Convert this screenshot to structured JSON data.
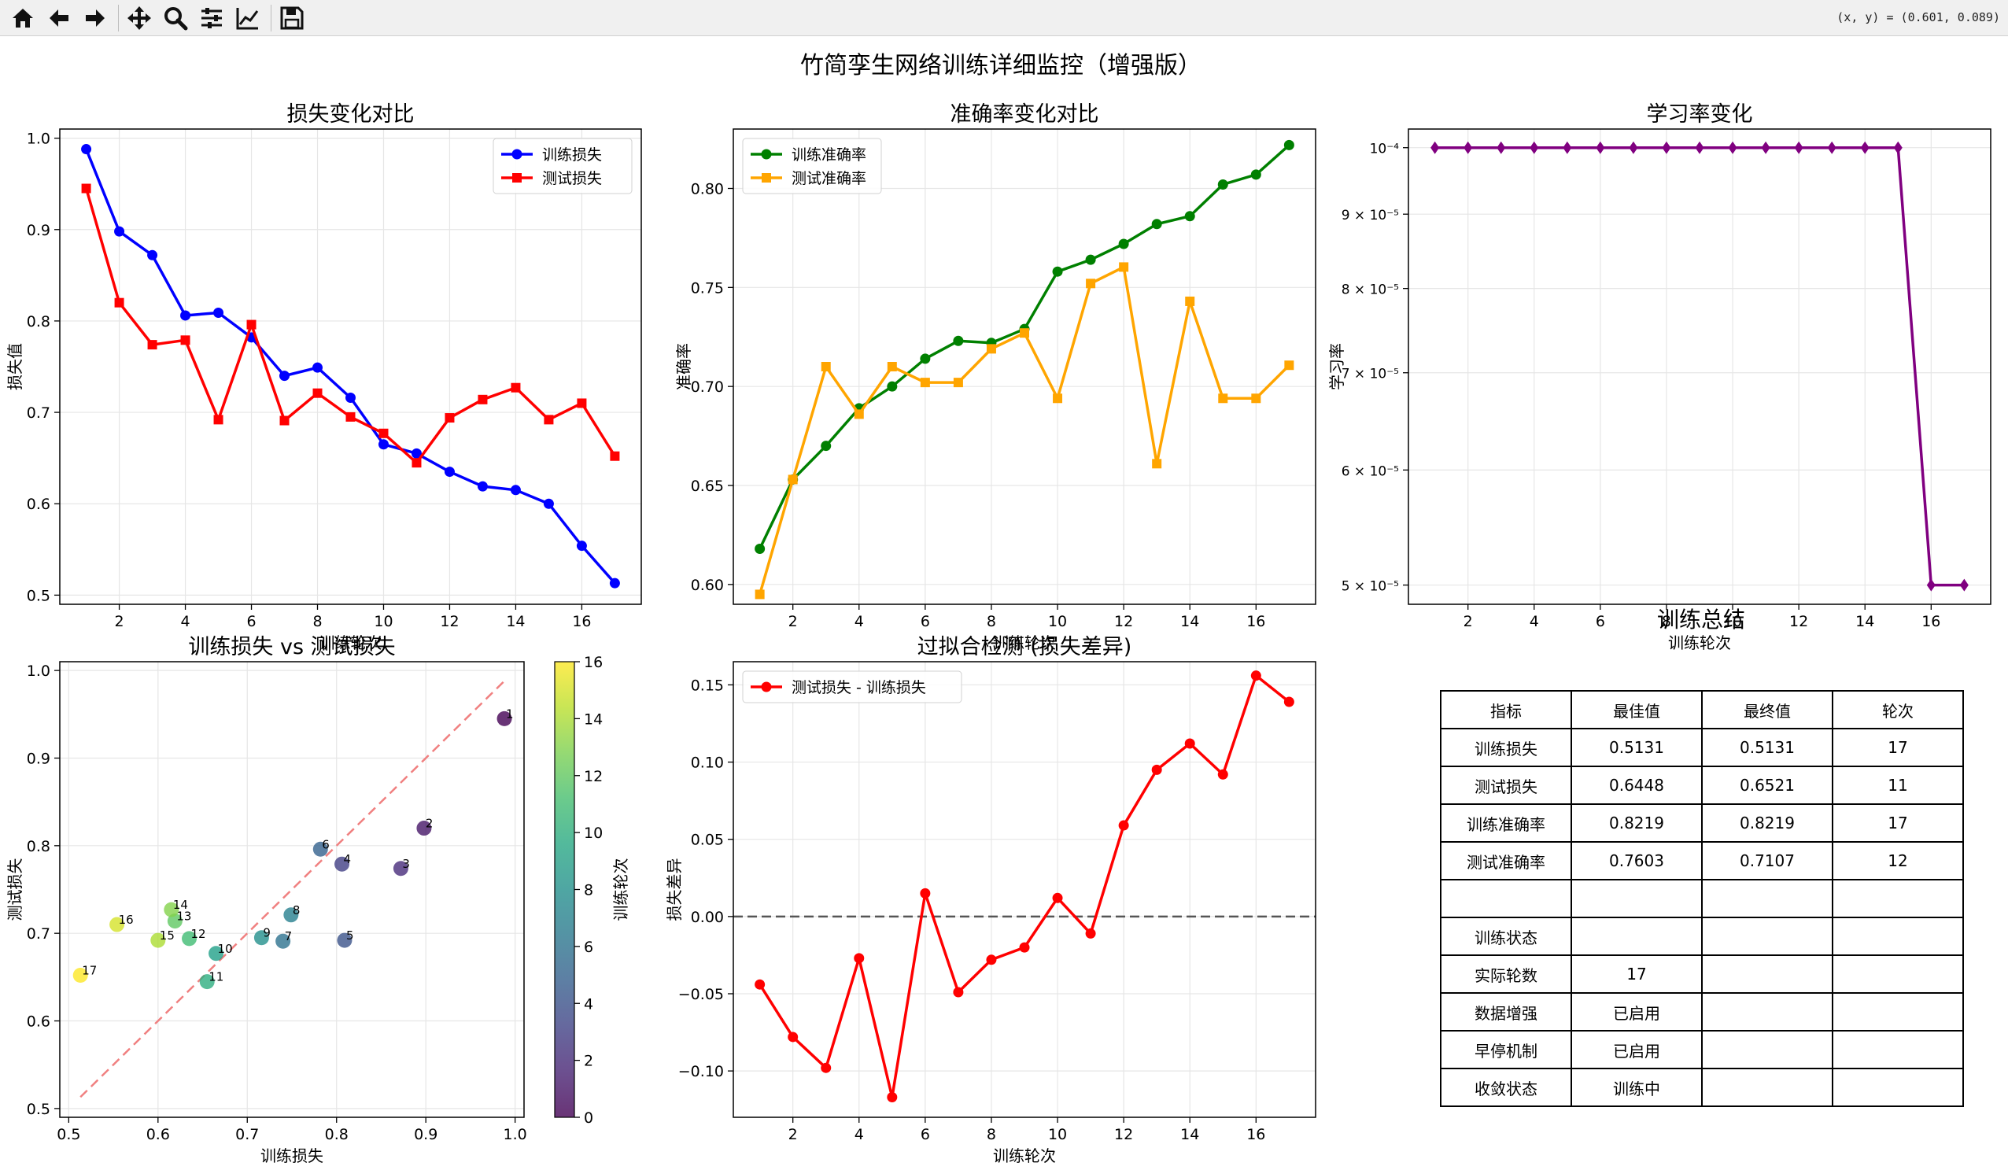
{
  "toolbar": {
    "buttons": [
      {
        "name": "home-button",
        "icon": "home-icon"
      },
      {
        "name": "back-button",
        "icon": "arrow-left-icon"
      },
      {
        "name": "forward-button",
        "icon": "arrow-right-icon"
      },
      {
        "name": "pan-button",
        "icon": "move-icon"
      },
      {
        "name": "zoom-button",
        "icon": "magnifier-icon"
      },
      {
        "name": "subplots-button",
        "icon": "sliders-icon"
      },
      {
        "name": "edit-axes-button",
        "icon": "line-chart-icon"
      },
      {
        "name": "save-button",
        "icon": "floppy-disk-icon"
      }
    ],
    "coordinate_readout": "(x, y) = (0.601, 0.089)"
  },
  "figure": {
    "suptitle": "竹简孪生网络训练详细监控（增强版）"
  },
  "chart_data": [
    {
      "id": "loss",
      "type": "line",
      "title": "损失变化对比",
      "xlabel": "训练轮次",
      "ylabel": "损失值",
      "xlim": [
        0.2,
        17.8
      ],
      "ylim": [
        0.49,
        1.01
      ],
      "xticks": [
        2,
        4,
        6,
        8,
        10,
        12,
        14,
        16
      ],
      "yticks": [
        0.5,
        0.6,
        0.7,
        0.8,
        0.9,
        1.0
      ],
      "ytick_labels": [
        "0.5",
        "0.6",
        "0.7",
        "0.8",
        "0.9",
        "1.0"
      ],
      "grid": true,
      "legend": "upper-right",
      "x": [
        1,
        2,
        3,
        4,
        5,
        6,
        7,
        8,
        9,
        10,
        11,
        12,
        13,
        14,
        15,
        16,
        17
      ],
      "series": [
        {
          "name": "训练损失",
          "color": "#0000ff",
          "marker": "circle",
          "values": [
            0.988,
            0.898,
            0.872,
            0.806,
            0.809,
            0.782,
            0.74,
            0.749,
            0.716,
            0.665,
            0.655,
            0.635,
            0.619,
            0.615,
            0.6,
            0.554,
            0.5131
          ]
        },
        {
          "name": "测试损失",
          "color": "#ff0000",
          "marker": "square",
          "values": [
            0.945,
            0.82,
            0.774,
            0.779,
            0.692,
            0.796,
            0.691,
            0.721,
            0.695,
            0.677,
            0.6448,
            0.694,
            0.714,
            0.727,
            0.692,
            0.71,
            0.6521
          ]
        }
      ]
    },
    {
      "id": "accuracy",
      "type": "line",
      "title": "准确率变化对比",
      "xlabel": "训练轮次",
      "ylabel": "准确率",
      "xlim": [
        0.2,
        17.8
      ],
      "ylim": [
        0.59,
        0.83
      ],
      "xticks": [
        2,
        4,
        6,
        8,
        10,
        12,
        14,
        16
      ],
      "yticks": [
        0.6,
        0.65,
        0.7,
        0.75,
        0.8
      ],
      "ytick_labels": [
        "0.60",
        "0.65",
        "0.70",
        "0.75",
        "0.80"
      ],
      "grid": true,
      "legend": "upper-left",
      "x": [
        1,
        2,
        3,
        4,
        5,
        6,
        7,
        8,
        9,
        10,
        11,
        12,
        13,
        14,
        15,
        16,
        17
      ],
      "series": [
        {
          "name": "训练准确率",
          "color": "#008000",
          "marker": "circle",
          "values": [
            0.618,
            0.653,
            0.67,
            0.689,
            0.7,
            0.714,
            0.723,
            0.722,
            0.729,
            0.758,
            0.764,
            0.772,
            0.782,
            0.786,
            0.802,
            0.807,
            0.8219
          ]
        },
        {
          "name": "测试准确率",
          "color": "#ffa500",
          "marker": "square",
          "values": [
            0.595,
            0.653,
            0.71,
            0.686,
            0.71,
            0.702,
            0.702,
            0.719,
            0.727,
            0.694,
            0.752,
            0.7603,
            0.661,
            0.743,
            0.694,
            0.694,
            0.7107
          ]
        }
      ]
    },
    {
      "id": "lr",
      "type": "line",
      "title": "学习率变化",
      "xlabel": "训练轮次",
      "ylabel": "学习率",
      "yscale": "log",
      "xlim": [
        0.2,
        17.8
      ],
      "ylim": [
        4.85e-05,
        0.000103
      ],
      "xticks": [
        2,
        4,
        6,
        8,
        10,
        12,
        14,
        16
      ],
      "yticks": [
        5e-05,
        6e-05,
        7e-05,
        8e-05,
        9e-05,
        0.0001
      ],
      "ytick_labels": [
        "5 × 10⁻⁵",
        "6 × 10⁻⁵",
        "7 × 10⁻⁵",
        "8 × 10⁻⁵",
        "9 × 10⁻⁵",
        "10⁻⁴"
      ],
      "grid": true,
      "x": [
        1,
        2,
        3,
        4,
        5,
        6,
        7,
        8,
        9,
        10,
        11,
        12,
        13,
        14,
        15,
        16,
        17
      ],
      "series": [
        {
          "color": "#800080",
          "marker": "diamond",
          "values": [
            0.0001,
            0.0001,
            0.0001,
            0.0001,
            0.0001,
            0.0001,
            0.0001,
            0.0001,
            0.0001,
            0.0001,
            0.0001,
            0.0001,
            0.0001,
            0.0001,
            0.0001,
            5e-05,
            5e-05
          ]
        }
      ]
    },
    {
      "id": "scatter",
      "type": "scatter",
      "title": "训练损失 vs 测试损失",
      "xlabel": "训练损失",
      "ylabel": "测试损失",
      "xlim": [
        0.49,
        1.01
      ],
      "ylim": [
        0.49,
        1.01
      ],
      "xticks": [
        0.5,
        0.6,
        0.7,
        0.8,
        0.9,
        1.0
      ],
      "yticks": [
        0.5,
        0.6,
        0.7,
        0.8,
        0.9,
        1.0
      ],
      "xtick_labels": [
        "0.5",
        "0.6",
        "0.7",
        "0.8",
        "0.9",
        "1.0"
      ],
      "ytick_labels": [
        "0.5",
        "0.6",
        "0.7",
        "0.8",
        "0.9",
        "1.0"
      ],
      "grid": true,
      "colormap": "viridis",
      "colorbar": {
        "label": "训练轮次",
        "min": 0,
        "max": 16,
        "ticks": [
          0,
          2,
          4,
          6,
          8,
          10,
          12,
          14,
          16
        ]
      },
      "diagonal": {
        "from": 0.5131,
        "to": 0.988,
        "color": "#f08080"
      },
      "points": [
        {
          "label": "1",
          "x": 0.988,
          "y": 0.945,
          "c": 0
        },
        {
          "label": "2",
          "x": 0.898,
          "y": 0.82,
          "c": 1
        },
        {
          "label": "3",
          "x": 0.872,
          "y": 0.774,
          "c": 2
        },
        {
          "label": "4",
          "x": 0.806,
          "y": 0.779,
          "c": 3
        },
        {
          "label": "5",
          "x": 0.809,
          "y": 0.692,
          "c": 4
        },
        {
          "label": "6",
          "x": 0.782,
          "y": 0.796,
          "c": 5
        },
        {
          "label": "7",
          "x": 0.74,
          "y": 0.691,
          "c": 6
        },
        {
          "label": "8",
          "x": 0.749,
          "y": 0.721,
          "c": 7
        },
        {
          "label": "9",
          "x": 0.716,
          "y": 0.695,
          "c": 8
        },
        {
          "label": "10",
          "x": 0.665,
          "y": 0.677,
          "c": 9
        },
        {
          "label": "11",
          "x": 0.655,
          "y": 0.6448,
          "c": 10
        },
        {
          "label": "12",
          "x": 0.635,
          "y": 0.694,
          "c": 11
        },
        {
          "label": "13",
          "x": 0.619,
          "y": 0.714,
          "c": 12
        },
        {
          "label": "14",
          "x": 0.615,
          "y": 0.727,
          "c": 13
        },
        {
          "label": "15",
          "x": 0.6,
          "y": 0.692,
          "c": 14
        },
        {
          "label": "16",
          "x": 0.554,
          "y": 0.71,
          "c": 15
        },
        {
          "label": "17",
          "x": 0.5131,
          "y": 0.6521,
          "c": 16
        }
      ]
    },
    {
      "id": "overfit",
      "type": "line",
      "title": "过拟合检测 (损失差异)",
      "xlabel": "训练轮次",
      "ylabel": "损失差异",
      "xlim": [
        0.2,
        17.8
      ],
      "ylim": [
        -0.13,
        0.165
      ],
      "xticks": [
        2,
        4,
        6,
        8,
        10,
        12,
        14,
        16
      ],
      "yticks": [
        -0.1,
        -0.05,
        0.0,
        0.05,
        0.1,
        0.15
      ],
      "ytick_labels": [
        "−0.10",
        "−0.05",
        "0.00",
        "0.05",
        "0.10",
        "0.15"
      ],
      "grid": true,
      "legend": "upper-left",
      "reference_line": {
        "y": 0,
        "style": "dashed",
        "color": "#555555"
      },
      "x": [
        1,
        2,
        3,
        4,
        5,
        6,
        7,
        8,
        9,
        10,
        11,
        12,
        13,
        14,
        15,
        16,
        17
      ],
      "series": [
        {
          "name": "测试损失 - 训练损失",
          "color": "#ff0000",
          "marker": "circle",
          "values": [
            -0.044,
            -0.078,
            -0.098,
            -0.027,
            -0.117,
            0.015,
            -0.049,
            -0.028,
            -0.02,
            0.012,
            -0.011,
            0.059,
            0.095,
            0.112,
            0.092,
            0.156,
            0.139
          ]
        }
      ]
    }
  ],
  "summary": {
    "title": "训练总结",
    "header": [
      "指标",
      "最佳值",
      "最终值",
      "轮次"
    ],
    "rows": [
      [
        "训练损失",
        "0.5131",
        "0.5131",
        "17"
      ],
      [
        "测试损失",
        "0.6448",
        "0.6521",
        "11"
      ],
      [
        "训练准确率",
        "0.8219",
        "0.8219",
        "17"
      ],
      [
        "测试准确率",
        "0.7603",
        "0.7107",
        "12"
      ],
      [
        "",
        "",
        "",
        ""
      ],
      [
        "训练状态",
        "",
        "",
        ""
      ],
      [
        "实际轮数",
        "17",
        "",
        ""
      ],
      [
        "数据增强",
        "已启用",
        "",
        ""
      ],
      [
        "早停机制",
        "已启用",
        "",
        ""
      ],
      [
        "收敛状态",
        "训练中",
        "",
        ""
      ]
    ]
  }
}
